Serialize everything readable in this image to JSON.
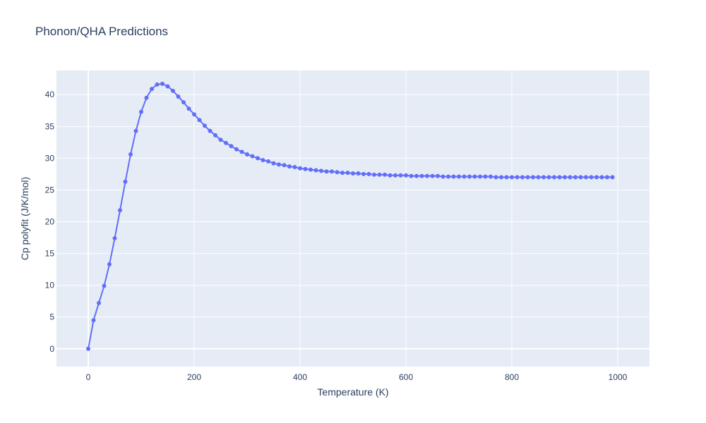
{
  "chart_data": {
    "type": "line",
    "title": "Phonon/QHA Predictions",
    "xlabel": "Temperature (K)",
    "ylabel": "Cp polyfit (J/K/mol)",
    "xlim": [
      -60,
      1060
    ],
    "ylim": [
      -2.8,
      43.8
    ],
    "xticks": [
      0,
      200,
      400,
      600,
      800,
      1000
    ],
    "yticks": [
      0,
      5,
      10,
      15,
      20,
      25,
      30,
      35,
      40
    ],
    "grid": true,
    "series_color": "#636efa",
    "plot_bg": "#e5ecf6",
    "mode": "lines+markers",
    "x": [
      0,
      10,
      20,
      30,
      40,
      50,
      60,
      70,
      80,
      90,
      100,
      110,
      120,
      130,
      140,
      150,
      160,
      170,
      180,
      190,
      200,
      210,
      220,
      230,
      240,
      250,
      260,
      270,
      280,
      290,
      300,
      310,
      320,
      330,
      340,
      350,
      360,
      370,
      380,
      390,
      400,
      410,
      420,
      430,
      440,
      450,
      460,
      470,
      480,
      490,
      500,
      510,
      520,
      530,
      540,
      550,
      560,
      570,
      580,
      590,
      600,
      610,
      620,
      630,
      640,
      650,
      660,
      670,
      680,
      690,
      700,
      710,
      720,
      730,
      740,
      750,
      760,
      770,
      780,
      790,
      800,
      810,
      820,
      830,
      840,
      850,
      860,
      870,
      880,
      890,
      900,
      910,
      920,
      930,
      940,
      950,
      960,
      970,
      980,
      990
    ],
    "y": [
      0,
      4.5,
      7.2,
      9.9,
      13.3,
      17.4,
      21.8,
      26.3,
      30.6,
      34.3,
      37.3,
      39.5,
      40.9,
      41.6,
      41.7,
      41.3,
      40.6,
      39.7,
      38.8,
      37.8,
      36.9,
      36.0,
      35.1,
      34.3,
      33.6,
      32.9,
      32.4,
      31.9,
      31.4,
      31.0,
      30.6,
      30.3,
      30.0,
      29.7,
      29.5,
      29.2,
      29.0,
      28.9,
      28.7,
      28.6,
      28.4,
      28.3,
      28.2,
      28.1,
      28.0,
      27.9,
      27.9,
      27.8,
      27.7,
      27.7,
      27.6,
      27.6,
      27.5,
      27.5,
      27.4,
      27.4,
      27.4,
      27.3,
      27.3,
      27.3,
      27.3,
      27.2,
      27.2,
      27.2,
      27.2,
      27.2,
      27.2,
      27.1,
      27.1,
      27.1,
      27.1,
      27.1,
      27.1,
      27.1,
      27.1,
      27.1,
      27.1,
      27.0,
      27.0,
      27.0,
      27.0,
      27.0,
      27.0,
      27.0,
      27.0,
      27.0,
      27.0,
      27.0,
      27.0,
      27.0,
      27.0,
      27.0,
      27.0,
      27.0,
      27.0,
      27.0,
      27.0,
      27.0,
      27.0,
      27.0
    ]
  }
}
